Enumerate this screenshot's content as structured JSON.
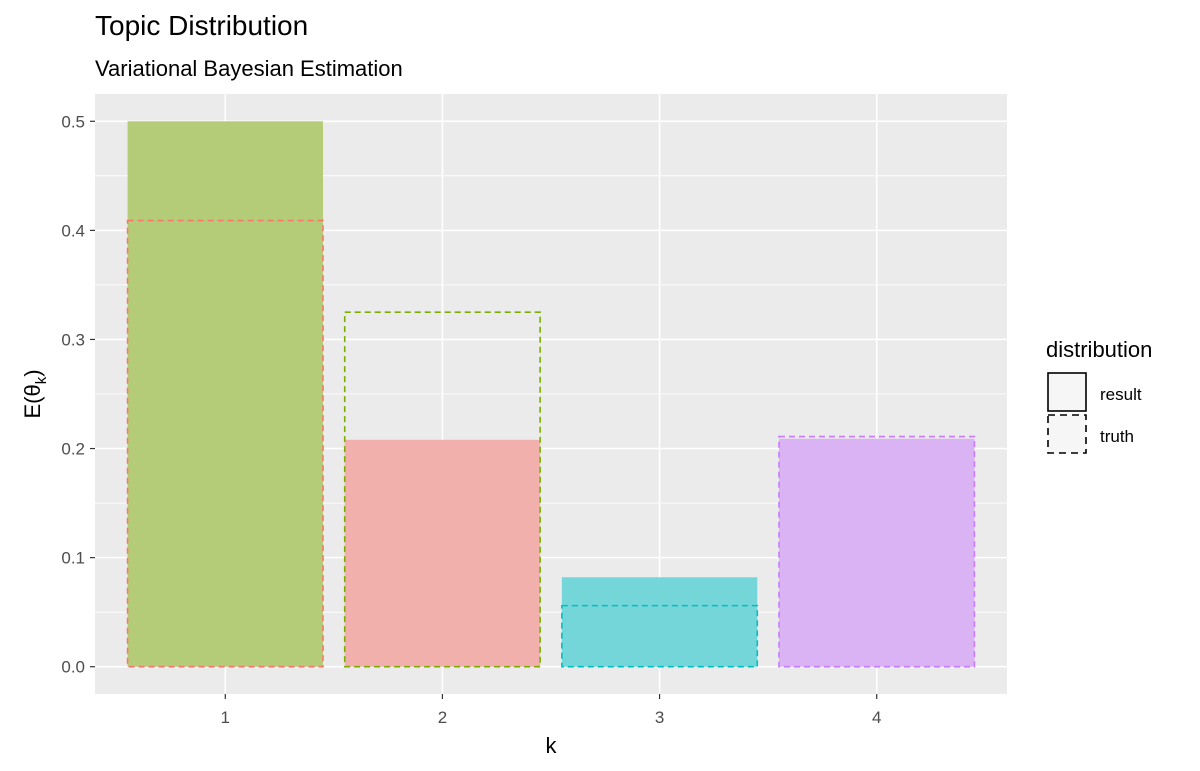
{
  "chart_data": {
    "type": "bar",
    "title": "Topic Distribution",
    "subtitle": "Variational Bayesian Estimation",
    "xlabel": "k",
    "ylabel_main": "E(θ",
    "ylabel_sub": "k",
    "ylabel_close": ")",
    "categories": [
      "1",
      "2",
      "3",
      "4"
    ],
    "ylim": [
      -0.025,
      0.525
    ],
    "yticks": [
      0.0,
      0.1,
      0.2,
      0.3,
      0.4,
      0.5
    ],
    "ytick_labels": [
      "0.0",
      "0.1",
      "0.2",
      "0.3",
      "0.4",
      "0.5"
    ],
    "grid": true,
    "legend_position": "right",
    "series": [
      {
        "name": "result",
        "values": [
          0.5,
          0.208,
          0.082,
          0.209
        ]
      },
      {
        "name": "truth",
        "values": [
          0.409,
          0.325,
          0.056,
          0.211
        ]
      }
    ],
    "colors": {
      "result_fill": [
        "#b4cc77",
        "#f1b0ab",
        "#74d6d8",
        "#d9b3f3"
      ],
      "truth_stroke": [
        "#f8766d",
        "#7cae00",
        "#00bfc4",
        "#c77cff"
      ],
      "panel_bg": "#ebebeb",
      "grid": "#ffffff"
    },
    "legend": {
      "title": "distribution",
      "items": [
        "result",
        "truth"
      ]
    }
  }
}
